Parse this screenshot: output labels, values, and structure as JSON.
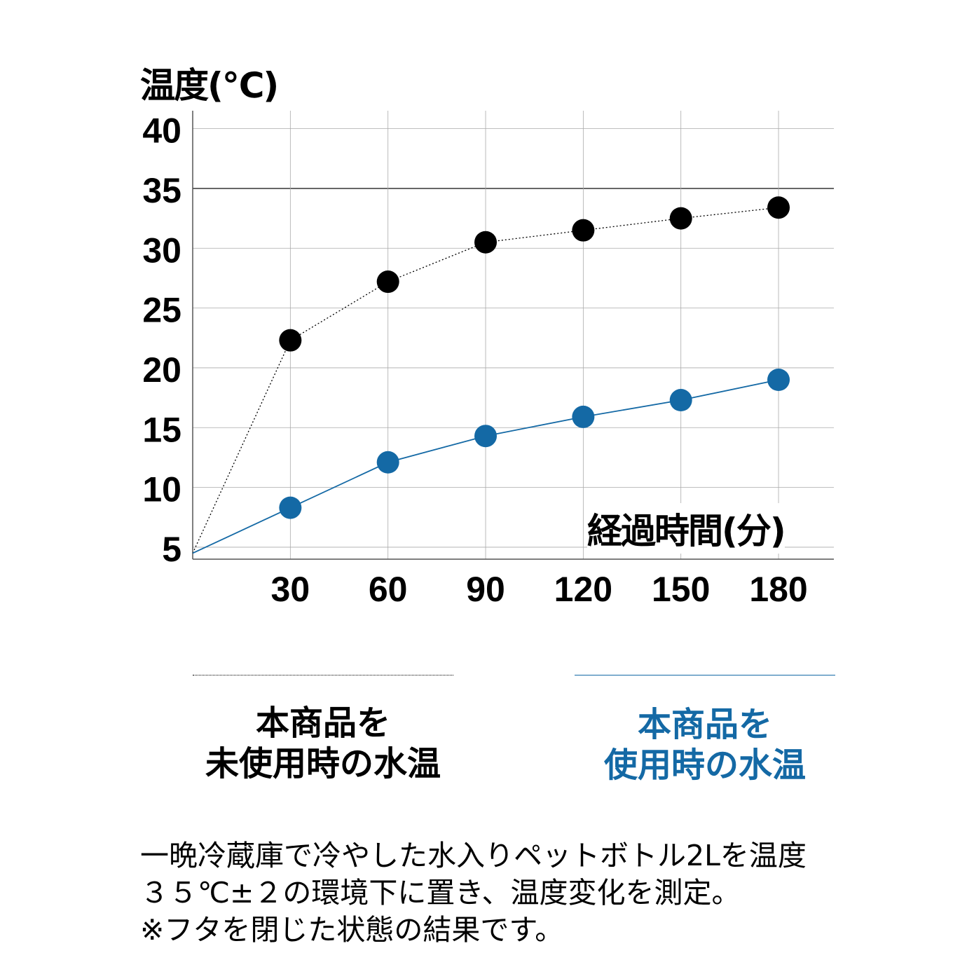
{
  "chart_data": {
    "type": "line",
    "ylabel": "温度(℃)",
    "xlabel": "経過時間(分)",
    "x": [
      0,
      30,
      60,
      90,
      120,
      150,
      180
    ],
    "x_ticks": [
      "30",
      "60",
      "90",
      "120",
      "150",
      "180"
    ],
    "y_ticks": [
      "40",
      "35",
      "30",
      "25",
      "20",
      "15",
      "10",
      "5"
    ],
    "ylim": [
      4,
      41.5
    ],
    "xlim": [
      0,
      197
    ],
    "grid": true,
    "reference_line": 35,
    "series": [
      {
        "name": "本商品を未使用時の水温",
        "color": "#000000",
        "style": "dotted",
        "values": [
          4.5,
          22.3,
          27.2,
          30.5,
          31.5,
          32.5,
          33.4
        ]
      },
      {
        "name": "本商品を使用時の水温",
        "color": "#1469a5",
        "style": "solid",
        "values": [
          4.5,
          8.3,
          12.1,
          14.3,
          15.9,
          17.3,
          19.0
        ]
      }
    ]
  },
  "legend": {
    "unused": {
      "line1": "本商品を",
      "line2": "未使用時の水温"
    },
    "used": {
      "line1": "本商品を",
      "line2": "使用時の水温"
    }
  },
  "note": {
    "line1": "一晩冷蔵庫で冷やした水入りペットボトル2Lを温度",
    "line2": "３５℃±２の環境下に置き、温度変化を測定。",
    "line3": "※フタを閉じた状態の結果です。"
  }
}
